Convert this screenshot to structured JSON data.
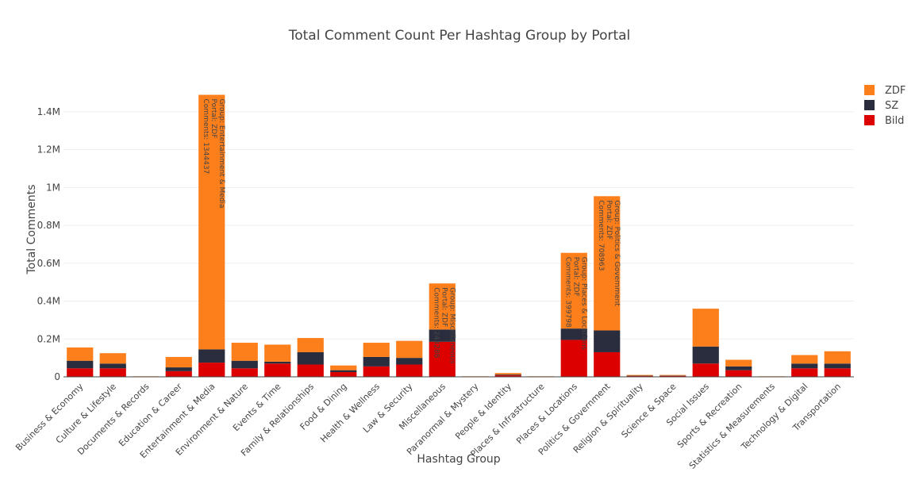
{
  "chart_data": {
    "type": "bar",
    "stacked": true,
    "title": "Total Comment Count Per Hashtag Group by Portal",
    "xlabel": "Hashtag Group",
    "ylabel": "Total Comments",
    "ylim": [
      0,
      1500000
    ],
    "yticks": [
      0,
      200000,
      400000,
      600000,
      800000,
      1000000,
      1200000,
      1400000
    ],
    "ytick_labels": [
      "0",
      "0.2M",
      "0.4M",
      "0.6M",
      "0.8M",
      "1M",
      "1.2M",
      "1.4M"
    ],
    "grid": true,
    "legend_position": "top-right",
    "categories": [
      "Business & Economy",
      "Culture & Lifestyle",
      "Documents & Records",
      "Education & Career",
      "Entertainment & Media",
      "Environment & Nature",
      "Events & Time",
      "Family & Relationships",
      "Food & Dining",
      "Health & Wellness",
      "Law & Security",
      "Miscellaneous",
      "Paranormal & Mystery",
      "People & Identity",
      "Places & Infrastructure",
      "Places & Locations",
      "Politics & Government",
      "Religion & Spirituality",
      "Science & Space",
      "Social Issues",
      "Sports & Recreation",
      "Statistics & Measurements",
      "Technology & Digital",
      "Transportation"
    ],
    "series": [
      {
        "name": "Bild",
        "color": "#dd0000",
        "values": [
          45000,
          45000,
          1000,
          30000,
          75000,
          45000,
          70000,
          65000,
          25000,
          55000,
          65000,
          185000,
          1000,
          8000,
          1000,
          195000,
          130000,
          4000,
          5000,
          70000,
          35000,
          1000,
          45000,
          45000
        ]
      },
      {
        "name": "SZ",
        "color": "#2a2d3e",
        "values": [
          40000,
          25000,
          1000,
          20000,
          70000,
          40000,
          10000,
          65000,
          10000,
          50000,
          35000,
          65000,
          1000,
          4000,
          1000,
          60000,
          115000,
          2000,
          2000,
          90000,
          20000,
          1000,
          25000,
          25000
        ]
      },
      {
        "name": "ZDF",
        "color": "#fd7f1c",
        "values": [
          70000,
          55000,
          1000,
          55000,
          1344437,
          95000,
          90000,
          75000,
          25000,
          75000,
          90000,
          243288,
          1000,
          8000,
          1000,
          399798,
          708963,
          4000,
          3000,
          200000,
          35000,
          1000,
          45000,
          65000
        ]
      }
    ],
    "annotations": [
      {
        "category": "Entertainment & Media",
        "series": "ZDF",
        "lines": [
          "Group: Entertainment & Media",
          "Portal: ZDF",
          "Comments: 1344437"
        ]
      },
      {
        "category": "Miscellaneous",
        "series": "ZDF",
        "lines": [
          "Group: Miscellaneous",
          "Portal: ZDF",
          "Comments: 243288"
        ]
      },
      {
        "category": "Places & Locations",
        "series": "ZDF",
        "lines": [
          "Group: Places & Locations",
          "Portal: ZDF",
          "Comments: 399798"
        ]
      },
      {
        "category": "Politics & Government",
        "series": "ZDF",
        "lines": [
          "Group: Politics & Government",
          "Portal: ZDF",
          "Comments: 708963"
        ]
      }
    ]
  }
}
